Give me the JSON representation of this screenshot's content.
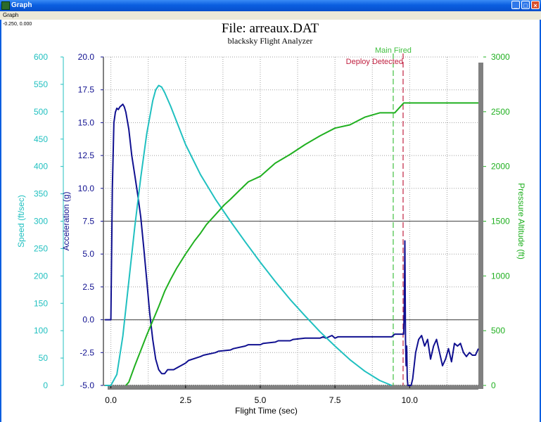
{
  "window": {
    "title": "Graph",
    "menu_graph": "Graph",
    "coords_readout": "-0.250, 0.000",
    "minimize_glyph": "_",
    "maximize_glyph": "□",
    "close_glyph": "×"
  },
  "chart_data": {
    "type": "line",
    "title": "File: arreaux.DAT",
    "subtitle": "blacksky Flight Analyzer",
    "xlabel": "Flight Time (sec)",
    "xlim": [
      -0.25,
      12.3
    ],
    "xticks": [
      0.0,
      2.5,
      5.0,
      7.5,
      10.0
    ],
    "xtick_labels": [
      "0.0",
      "2.5",
      "5.0",
      "7.5",
      "10.0"
    ],
    "axes": {
      "speed": {
        "label": "Speed (ft/sec)",
        "color": "#20c0c0",
        "ylim": [
          0,
          600
        ],
        "ticks": [
          0,
          50,
          100,
          150,
          200,
          250,
          300,
          350,
          400,
          450,
          500,
          550,
          600
        ],
        "tick_labels": [
          "0",
          "50",
          "100",
          "150",
          "200",
          "250",
          "300",
          "350",
          "400",
          "450",
          "500",
          "550",
          "600"
        ]
      },
      "acceleration": {
        "label": "Acceleration (g)",
        "color": "#101090",
        "ylim": [
          -5,
          20
        ],
        "ticks": [
          -5,
          -2.5,
          0,
          2.5,
          5,
          7.5,
          10,
          12.5,
          15,
          17.5,
          20
        ],
        "tick_labels": [
          "-5.0",
          "-2.5",
          "0.0",
          "2.5",
          "5.0",
          "7.5",
          "10.0",
          "12.5",
          "15.0",
          "17.5",
          "20.0"
        ]
      },
      "altitude": {
        "label": "Pressure Altitude (ft)",
        "color": "#20b020",
        "ylim": [
          0,
          3000
        ],
        "ticks": [
          0,
          500,
          1000,
          1500,
          2000,
          2500,
          3000
        ],
        "tick_labels": [
          "0",
          "500",
          "1000",
          "1500",
          "2000",
          "2500",
          "3000"
        ]
      }
    },
    "series": [
      {
        "name": "Acceleration",
        "axis": "acceleration",
        "color": "#101090",
        "x": [
          -0.2,
          0.0,
          0.05,
          0.1,
          0.15,
          0.2,
          0.25,
          0.3,
          0.35,
          0.4,
          0.45,
          0.5,
          0.6,
          0.7,
          0.8,
          0.9,
          1.0,
          1.1,
          1.2,
          1.3,
          1.4,
          1.5,
          1.6,
          1.7,
          1.8,
          1.9,
          2.0,
          2.1,
          2.5,
          2.6,
          3.0,
          3.1,
          3.5,
          3.6,
          4.0,
          4.1,
          4.5,
          4.6,
          5.0,
          5.1,
          5.5,
          5.6,
          6.0,
          6.1,
          6.5,
          6.6,
          7.0,
          7.1,
          7.2,
          7.3,
          7.4,
          7.5,
          7.6,
          7.7,
          8.0,
          9.0,
          9.4,
          9.5,
          9.8,
          9.82,
          9.84,
          9.86,
          9.88,
          9.9,
          9.92,
          9.94,
          9.96,
          10.0,
          10.05,
          10.1,
          10.2,
          10.3,
          10.4,
          10.5,
          10.6,
          10.7,
          10.8,
          10.9,
          11.0,
          11.1,
          11.2,
          11.3,
          11.4,
          11.5,
          11.6,
          11.7,
          11.8,
          11.9,
          12.0,
          12.1,
          12.2,
          12.3
        ],
        "values": [
          0.0,
          0.0,
          10.0,
          15.0,
          15.8,
          16.1,
          16.0,
          16.2,
          16.3,
          16.4,
          16.2,
          15.8,
          14.5,
          12.5,
          11.0,
          9.5,
          7.8,
          5.5,
          3.0,
          0.5,
          -1.5,
          -3.0,
          -3.8,
          -4.1,
          -4.1,
          -3.8,
          -3.8,
          -3.8,
          -3.3,
          -3.1,
          -2.8,
          -2.7,
          -2.5,
          -2.4,
          -2.3,
          -2.2,
          -2.0,
          -1.9,
          -1.9,
          -1.8,
          -1.7,
          -1.6,
          -1.6,
          -1.5,
          -1.4,
          -1.4,
          -1.4,
          -1.3,
          -1.4,
          -1.3,
          -1.2,
          -1.4,
          -1.3,
          -1.3,
          -1.3,
          -1.3,
          -1.3,
          -1.1,
          -1.1,
          1.0,
          6.0,
          -1.5,
          -3.5,
          -2.0,
          -4.5,
          -5.0,
          -5.0,
          -5.0,
          -5.0,
          -4.5,
          -2.5,
          -1.5,
          -1.2,
          -2.0,
          -1.5,
          -3.0,
          -2.0,
          -1.5,
          -2.5,
          -3.5,
          -3.0,
          -2.2,
          -3.2,
          -1.8,
          -2.0,
          -1.8,
          -2.5,
          -2.8,
          -2.5,
          -2.7,
          -2.7,
          -2.2
        ]
      },
      {
        "name": "Speed",
        "axis": "speed",
        "color": "#20c0c0",
        "x": [
          -0.2,
          0.0,
          0.2,
          0.4,
          0.6,
          0.8,
          1.0,
          1.2,
          1.4,
          1.5,
          1.6,
          1.7,
          1.8,
          2.0,
          2.5,
          3.0,
          3.5,
          4.0,
          4.5,
          5.0,
          5.5,
          6.0,
          6.5,
          7.0,
          7.5,
          8.0,
          8.5,
          9.0,
          9.4
        ],
        "values": [
          0,
          0,
          20,
          90,
          190,
          290,
          380,
          460,
          520,
          540,
          548,
          545,
          535,
          510,
          440,
          385,
          340,
          300,
          262,
          225,
          190,
          157,
          127,
          98,
          72,
          47,
          26,
          9,
          0
        ]
      },
      {
        "name": "Pressure Altitude",
        "axis": "altitude",
        "color": "#20b020",
        "x": [
          0.5,
          0.6,
          0.8,
          1.0,
          1.2,
          1.4,
          1.6,
          1.8,
          2.0,
          2.2,
          2.5,
          2.8,
          3.0,
          3.2,
          3.5,
          3.8,
          4.0,
          4.3,
          4.6,
          5.0,
          5.5,
          6.0,
          6.5,
          7.0,
          7.5,
          8.0,
          8.5,
          9.0,
          9.5,
          9.8,
          12.3
        ],
        "values": [
          0,
          30,
          180,
          320,
          460,
          590,
          720,
          860,
          970,
          1070,
          1200,
          1320,
          1390,
          1470,
          1560,
          1650,
          1700,
          1780,
          1860,
          1910,
          2030,
          2110,
          2200,
          2280,
          2350,
          2380,
          2450,
          2490,
          2490,
          2580,
          2580
        ]
      }
    ],
    "reference_lines": [
      {
        "x": 9.45,
        "label": "Main Fired",
        "color": "#40c040"
      },
      {
        "x": 9.78,
        "label": "Deploy Detected",
        "color": "#c02040"
      }
    ],
    "horizontal_lines": [
      {
        "axis": "acceleration",
        "value": 7.5
      },
      {
        "axis": "acceleration",
        "value": 0.0
      }
    ],
    "grid": true
  }
}
